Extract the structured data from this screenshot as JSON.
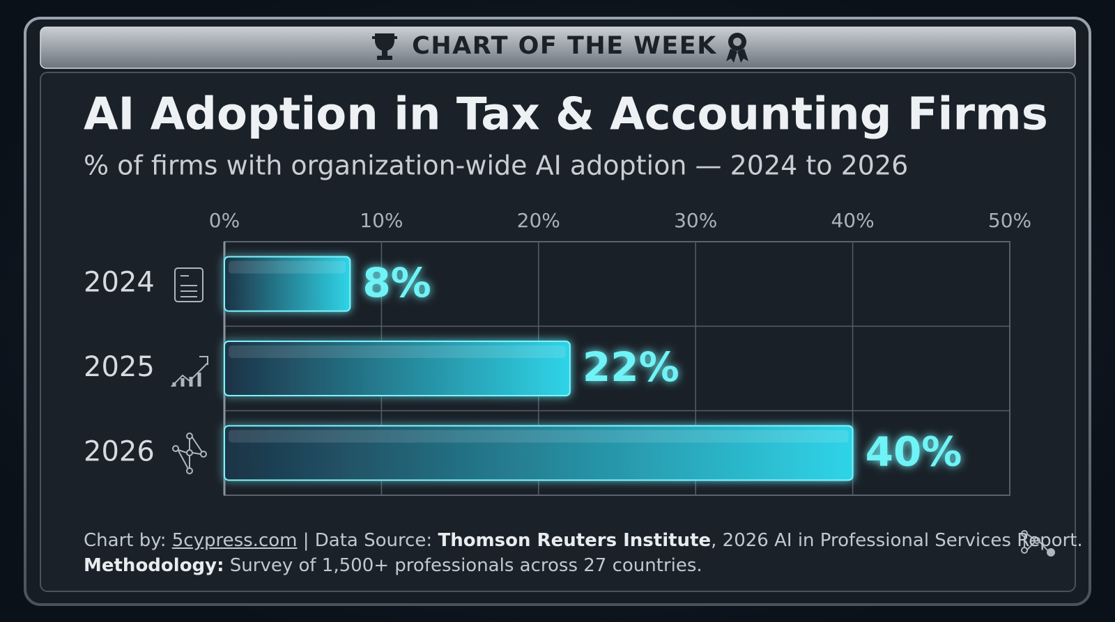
{
  "banner": "CHART OF THE WEEK",
  "chart_data": {
    "type": "bar",
    "orientation": "horizontal",
    "title": "AI Adoption in Tax & Accounting Firms",
    "subtitle": "% of firms with organization-wide AI adoption — 2024 to 2026",
    "categories": [
      "2024",
      "2025",
      "2026"
    ],
    "values": [
      8,
      22,
      40
    ],
    "value_labels": [
      "8%",
      "22%",
      "40%"
    ],
    "color": "#2fd4e8",
    "xlim": [
      0,
      50
    ],
    "xticks": [
      {
        "value": 0,
        "label": "0%"
      },
      {
        "value": 10,
        "label": "10%"
      },
      {
        "value": 20,
        "label": "20%"
      },
      {
        "value": 30,
        "label": "30%"
      },
      {
        "value": 40,
        "label": "40%"
      },
      {
        "value": 50,
        "label": "50%"
      }
    ],
    "grid": true
  },
  "footer": {
    "line1": [
      "Chart by: ",
      "5cypress.com",
      " | Data Source: ",
      "Thomson Reuters Institute",
      ", 2026 AI in Professional Services Report."
    ],
    "line2": [
      "Methodology:",
      " Survey of 1,500+ professionals across 27 countries."
    ]
  }
}
